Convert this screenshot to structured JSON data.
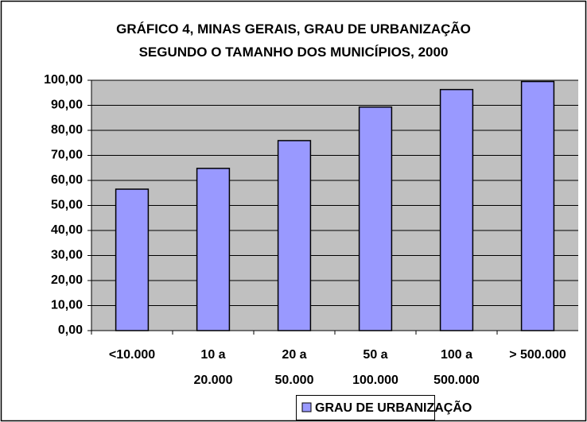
{
  "chart_data": {
    "type": "bar",
    "title": "GRÁFICO 4, MINAS GERAIS, GRAU DE URBANIZAÇÃO\nSEGUNDO O TAMANHO DOS MUNICÍPIOS, 2000",
    "categories": [
      "<10.000",
      "10 a 20.000",
      "20 a 50.000",
      "50 a 100.000",
      "100 a 500.000",
      "> 500.000"
    ],
    "series": [
      {
        "name": "GRAU DE URBANIZAÇÃO",
        "color": "#9999ff",
        "values": [
          56.5,
          64.8,
          75.9,
          89.3,
          96.3,
          99.5
        ]
      }
    ],
    "ylim": [
      0,
      100
    ],
    "yticks": [
      {
        "value": 0,
        "label": "0,00"
      },
      {
        "value": 10,
        "label": "10,00"
      },
      {
        "value": 20,
        "label": "20,00"
      },
      {
        "value": 30,
        "label": "30,00"
      },
      {
        "value": 40,
        "label": "40,00"
      },
      {
        "value": 50,
        "label": "50,00"
      },
      {
        "value": 60,
        "label": "60,00"
      },
      {
        "value": 70,
        "label": "70,00"
      },
      {
        "value": 80,
        "label": "80,00"
      },
      {
        "value": 90,
        "label": "90,00"
      },
      {
        "value": 100,
        "label": "100,00"
      }
    ],
    "grid": true,
    "legend": "bottom"
  }
}
